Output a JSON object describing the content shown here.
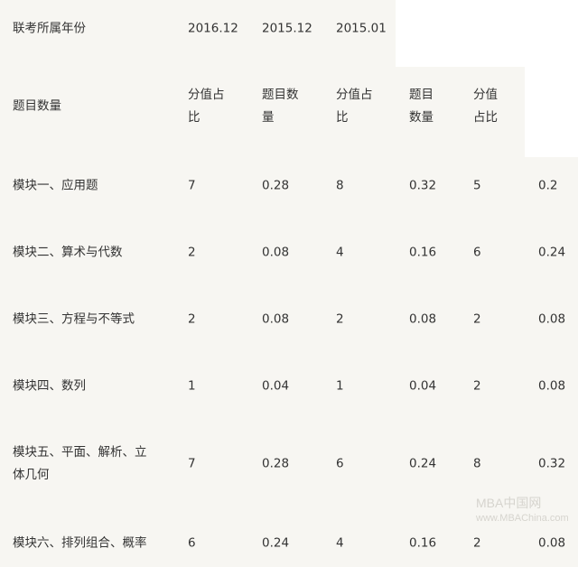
{
  "header": {
    "year_label": "联考所属年份",
    "years": [
      "2016.12",
      "2015.12",
      "2015.01"
    ],
    "count_label": "题目数量",
    "sub_headers": [
      "分值占\n比",
      "题目数\n量",
      "分值占\n比",
      "题目\n数量",
      "分值\n占比"
    ]
  },
  "rows": [
    {
      "label": "模块一、应用题",
      "values": [
        "7",
        "0.28",
        "8",
        "0.32",
        "5",
        "0.2"
      ]
    },
    {
      "label": "模块二、算术与代数",
      "values": [
        "2",
        "0.08",
        "4",
        "0.16",
        "6",
        "0.24"
      ]
    },
    {
      "label": "模块三、方程与不等式",
      "values": [
        "2",
        "0.08",
        "2",
        "0.08",
        "2",
        "0.08"
      ]
    },
    {
      "label": "模块四、数列",
      "values": [
        "1",
        "0.04",
        "1",
        "0.04",
        "2",
        "0.08"
      ]
    },
    {
      "label": "模块五、平面、解析、立\n体几何",
      "values": [
        "7",
        "0.28",
        "6",
        "0.24",
        "8",
        "0.32"
      ]
    },
    {
      "label": "模块六、排列组合、概率",
      "values": [
        "6",
        "0.24",
        "4",
        "0.16",
        "2",
        "0.08"
      ]
    }
  ],
  "watermark": {
    "line1": "MBA中国网",
    "line2": "www.MBAChina.com"
  }
}
